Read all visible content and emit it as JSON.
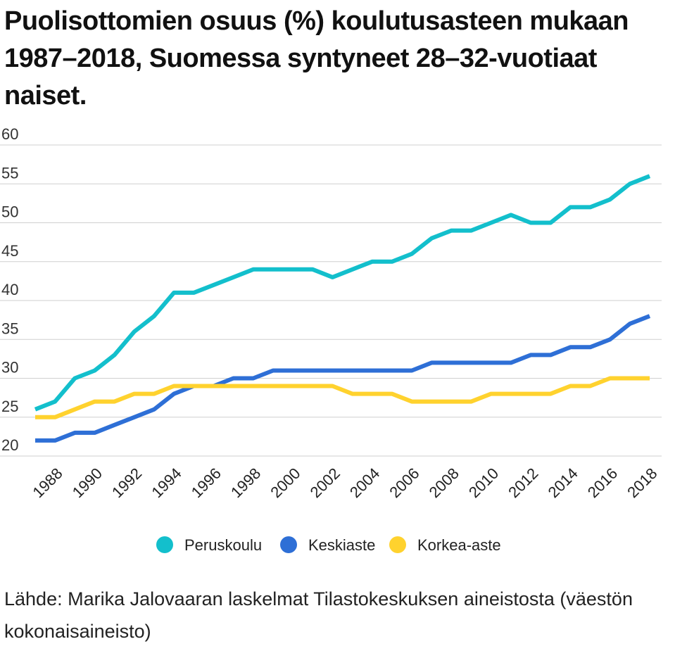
{
  "title": "Puolisottomien osuus (%) koulutusasteen mukaan 1987–2018, Suomessa syntyneet 28–32-vuotiaat naiset.",
  "source": "Lähde: Marika Jalovaaran laskelmat Tilastokeskuksen aineistosta (väestön kokonaisaineisto)",
  "chart_data": {
    "type": "line",
    "title": "Puolisottomien osuus (%) koulutusasteen mukaan 1987–2018, Suomessa syntyneet 28–32-vuotiaat naiset.",
    "xlabel": "",
    "ylabel": "",
    "x": [
      1987,
      1988,
      1989,
      1990,
      1991,
      1992,
      1993,
      1994,
      1995,
      1996,
      1997,
      1998,
      1999,
      2000,
      2001,
      2002,
      2003,
      2004,
      2005,
      2006,
      2007,
      2008,
      2009,
      2010,
      2011,
      2012,
      2013,
      2014,
      2015,
      2016,
      2017,
      2018
    ],
    "x_tick_labels": [
      "1988",
      "1990",
      "1992",
      "1994",
      "1996",
      "1998",
      "2000",
      "2002",
      "2004",
      "2006",
      "2008",
      "2010",
      "2012",
      "2014",
      "2016",
      "2018"
    ],
    "y_tick_labels": [
      "20",
      "25",
      "30",
      "35",
      "40",
      "45",
      "50",
      "55",
      "60"
    ],
    "ylim": [
      20,
      60
    ],
    "grid": true,
    "legend_position": "bottom",
    "series": [
      {
        "name": "Peruskoulu",
        "color": "#13bfcc",
        "values": [
          26,
          27,
          30,
          31,
          33,
          36,
          38,
          41,
          41,
          42,
          43,
          44,
          44,
          44,
          44,
          43,
          44,
          45,
          45,
          46,
          48,
          49,
          49,
          50,
          51,
          50,
          50,
          52,
          52,
          53,
          55,
          56
        ]
      },
      {
        "name": "Keskiaste",
        "color": "#2e6fd6",
        "values": [
          22,
          22,
          23,
          23,
          24,
          25,
          26,
          28,
          29,
          29,
          30,
          30,
          31,
          31,
          31,
          31,
          31,
          31,
          31,
          31,
          32,
          32,
          32,
          32,
          32,
          33,
          33,
          34,
          34,
          35,
          37,
          38
        ]
      },
      {
        "name": "Korkea-aste",
        "color": "#ffd22e",
        "values": [
          25,
          25,
          26,
          27,
          27,
          28,
          28,
          29,
          29,
          29,
          29,
          29,
          29,
          29,
          29,
          29,
          28,
          28,
          28,
          27,
          27,
          27,
          27,
          28,
          28,
          28,
          28,
          29,
          29,
          30,
          30,
          30
        ]
      }
    ]
  }
}
